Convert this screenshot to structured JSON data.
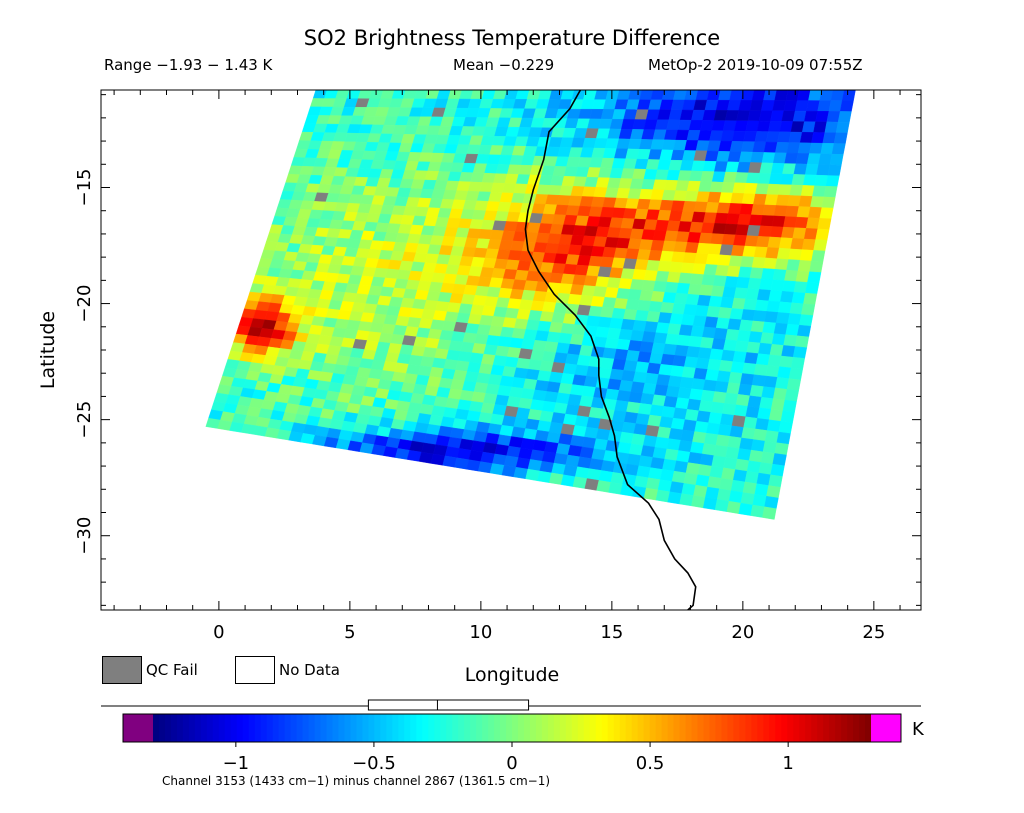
{
  "header": {
    "title": "SO2 Brightness Temperature Difference",
    "range_text": "Range −1.93 − 1.43 K",
    "mean_text": "Mean −0.229",
    "satellite_text": "MetOp-2 2019-10-09 07:55Z"
  },
  "legend": {
    "qc_fail_label": "QC Fail",
    "no_data_label": "No Data",
    "qc_fail_color": "#7f7f7f",
    "no_data_color": "#ffffff"
  },
  "colorbar": {
    "unit": "K",
    "tick_labels": [
      "−1",
      "−0.5",
      "0",
      "0.5",
      "1"
    ],
    "tick_values": [
      -1,
      -0.5,
      0,
      0.5,
      1
    ],
    "min": -1.3,
    "max": 1.3,
    "under_color": "#800080",
    "over_color": "#ff00ff",
    "colors": [
      "#00007f",
      "#0000ff",
      "#007fff",
      "#00ffff",
      "#7fff7f",
      "#ffff00",
      "#ff7f00",
      "#ff0000",
      "#7f0000"
    ],
    "box_summary": {
      "q1": -0.52,
      "median": -0.27,
      "q3": 0.06,
      "note": "box summary bar above colorbar"
    }
  },
  "footnote": "Channel 3153 (1433 cm−1) minus channel 2867 (1361.5 cm−1)",
  "chart_data": {
    "type": "heatmap",
    "title": "SO2 Brightness Temperature Difference",
    "xlabel": "Longitude",
    "ylabel": "Latitude",
    "xlim": [
      -4.5,
      26.8
    ],
    "ylim": [
      -33.2,
      -10.8
    ],
    "x_ticks": [
      0,
      5,
      10,
      15,
      20,
      25
    ],
    "y_ticks": [
      -15,
      -20,
      -25,
      -30
    ],
    "x_tick_labels": [
      "0",
      "5",
      "10",
      "15",
      "20",
      "25"
    ],
    "y_tick_labels": [
      "−15",
      "−20",
      "−25",
      "−30"
    ],
    "units": "K",
    "range": [
      -1.93,
      1.43
    ],
    "mean": -0.229,
    "swath_corners": [
      [
        3.7,
        -10.8
      ],
      [
        24.3,
        -10.8
      ],
      [
        21.2,
        -29.3
      ],
      [
        -0.5,
        -25.3
      ],
      [
        -0.5,
        -25.0
      ]
    ],
    "field_features": [
      {
        "description": "warm band",
        "lon": [
          14,
          24
        ],
        "lat": [
          -15.5,
          -17.5
        ],
        "value": 1.0
      },
      {
        "description": "warm core",
        "lon": [
          11,
          16
        ],
        "lat": [
          -16,
          -20
        ],
        "value": 0.8
      },
      {
        "description": "warm patch west",
        "lon": [
          1,
          3
        ],
        "lat": [
          -20,
          -22
        ],
        "value": 1.1
      },
      {
        "description": "cold band south",
        "lon": [
          5,
          13
        ],
        "lat": [
          -25.5,
          -27.3
        ],
        "value": -1.1
      },
      {
        "description": "cold north-east",
        "lon": [
          16,
          24
        ],
        "lat": [
          -11,
          -14
        ],
        "value": -1.0
      }
    ],
    "coastline": [
      [
        13.8,
        -10.8
      ],
      [
        13.4,
        -11.6
      ],
      [
        12.6,
        -12.6
      ],
      [
        12.4,
        -13.8
      ],
      [
        12.0,
        -15.1
      ],
      [
        11.8,
        -16.0
      ],
      [
        11.7,
        -16.8
      ],
      [
        11.8,
        -17.7
      ],
      [
        12.2,
        -18.6
      ],
      [
        12.8,
        -19.6
      ],
      [
        13.6,
        -20.5
      ],
      [
        14.2,
        -21.4
      ],
      [
        14.5,
        -22.4
      ],
      [
        14.5,
        -23.1
      ],
      [
        14.6,
        -24.0
      ],
      [
        14.9,
        -24.9
      ],
      [
        15.1,
        -25.7
      ],
      [
        15.2,
        -26.6
      ],
      [
        15.6,
        -27.8
      ],
      [
        16.4,
        -28.6
      ],
      [
        16.8,
        -29.3
      ],
      [
        17.0,
        -30.2
      ],
      [
        17.4,
        -31.0
      ],
      [
        17.9,
        -31.6
      ],
      [
        18.2,
        -32.2
      ],
      [
        18.1,
        -33.0
      ],
      [
        17.9,
        -33.2
      ]
    ]
  }
}
